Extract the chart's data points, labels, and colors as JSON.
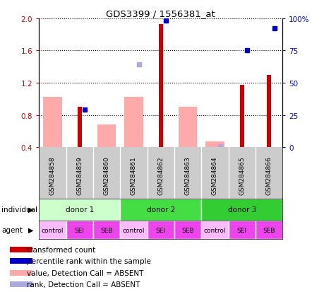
{
  "title": "GDS3399 / 1556381_at",
  "samples": [
    "GSM284858",
    "GSM284859",
    "GSM284860",
    "GSM284861",
    "GSM284862",
    "GSM284863",
    "GSM284864",
    "GSM284865",
    "GSM284866"
  ],
  "red_bars": [
    null,
    0.9,
    null,
    null,
    1.93,
    null,
    null,
    1.17,
    1.3
  ],
  "pink_bars": [
    1.02,
    null,
    0.68,
    1.02,
    null,
    0.9,
    0.47,
    null,
    null
  ],
  "blue_squares": [
    null,
    0.87,
    null,
    null,
    1.97,
    null,
    null,
    1.6,
    1.88
  ],
  "lavender_squares": [
    null,
    null,
    null,
    1.43,
    null,
    null,
    0.41,
    null,
    null
  ],
  "ylim_left": [
    0.4,
    2.0
  ],
  "ylim_right": [
    0,
    100
  ],
  "yticks_left": [
    0.4,
    0.8,
    1.2,
    1.6,
    2.0
  ],
  "yticks_right": [
    0,
    25,
    50,
    75,
    100
  ],
  "donor_groups": [
    {
      "label": "donor 1",
      "start": 0,
      "end": 3,
      "color": "#ccffcc"
    },
    {
      "label": "donor 2",
      "start": 3,
      "end": 6,
      "color": "#44dd44"
    },
    {
      "label": "donor 3",
      "start": 6,
      "end": 9,
      "color": "#33cc33"
    }
  ],
  "agents": [
    "control",
    "SEI",
    "SEB",
    "control",
    "SEI",
    "SEB",
    "control",
    "SEI",
    "SEB"
  ],
  "agent_colors": [
    "#ffbbff",
    "#ee44ee",
    "#ee44ee",
    "#ffbbff",
    "#ee44ee",
    "#ee44ee",
    "#ffbbff",
    "#ee44ee",
    "#ee44ee"
  ],
  "color_red": "#cc0000",
  "color_pink": "#ffaaaa",
  "color_blue": "#0000cc",
  "color_lavender": "#aaaadd",
  "color_gray": "#cccccc",
  "individual_label": "individual",
  "agent_label": "agent",
  "legend_items": [
    {
      "color": "#cc0000",
      "label": "transformed count"
    },
    {
      "color": "#0000cc",
      "label": "percentile rank within the sample"
    },
    {
      "color": "#ffaaaa",
      "label": "value, Detection Call = ABSENT"
    },
    {
      "color": "#aaaadd",
      "label": "rank, Detection Call = ABSENT"
    }
  ]
}
